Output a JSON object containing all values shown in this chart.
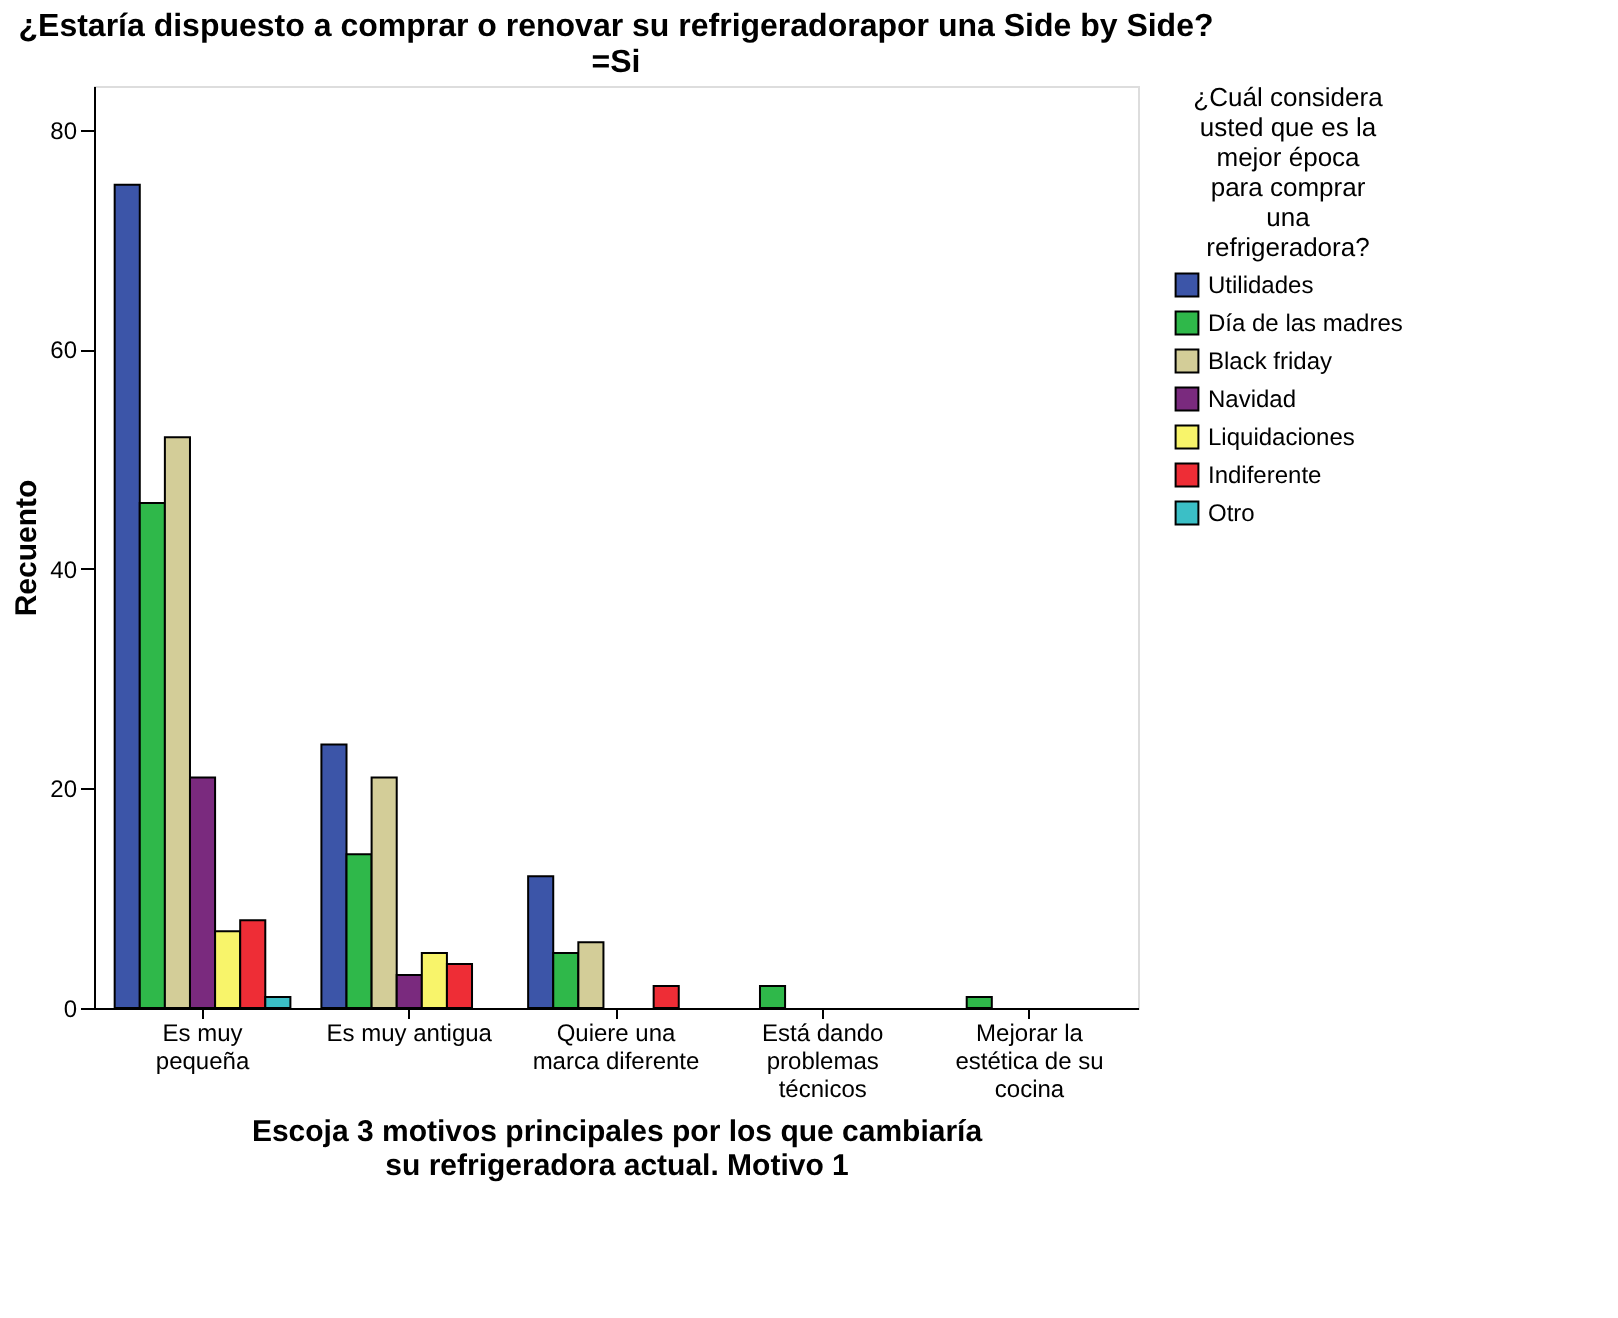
{
  "chart_data": {
    "type": "bar",
    "title": "¿Estaría dispuesto a comprar o renovar su refrigeradorapor una Side by Side?\n=Si",
    "xlabel": "Escoja 3 motivos principales por los que cambiaría\nsu refrigeradora actual. Motivo 1",
    "ylabel": "Recuento",
    "legend_title": "¿Cuál considera\nusted que es la\nmejor época\npara comprar\nuna\nrefrigeradora?",
    "categories": [
      "Es muy\npequeña",
      "Es muy antigua",
      "Quiere una\nmarca diferente",
      "Está dando\nproblemas\ntécnicos",
      "Mejorar la\nestética de su\ncocina"
    ],
    "series": [
      {
        "name": "Utilidades",
        "color": "#3c55a8",
        "values": [
          75,
          24,
          12,
          null,
          null
        ]
      },
      {
        "name": "Día de las madres",
        "color": "#2fb84a",
        "values": [
          46,
          14,
          5,
          2,
          1
        ]
      },
      {
        "name": "Black friday",
        "color": "#d3cd98",
        "values": [
          52,
          21,
          6,
          null,
          null
        ]
      },
      {
        "name": "Navidad",
        "color": "#7a2a7e",
        "values": [
          21,
          3,
          null,
          null,
          null
        ]
      },
      {
        "name": "Liquidaciones",
        "color": "#f8f46a",
        "values": [
          7,
          5,
          null,
          null,
          null
        ]
      },
      {
        "name": "Indiferente",
        "color": "#ee2d36",
        "values": [
          8,
          4,
          2,
          null,
          null
        ]
      },
      {
        "name": "Otro",
        "color": "#3bbfc6",
        "values": [
          1,
          null,
          null,
          null,
          null
        ]
      }
    ],
    "ylim": [
      0,
      84
    ],
    "yticks": [
      0,
      20,
      40,
      60,
      80
    ],
    "grid": false,
    "legend": "right"
  }
}
